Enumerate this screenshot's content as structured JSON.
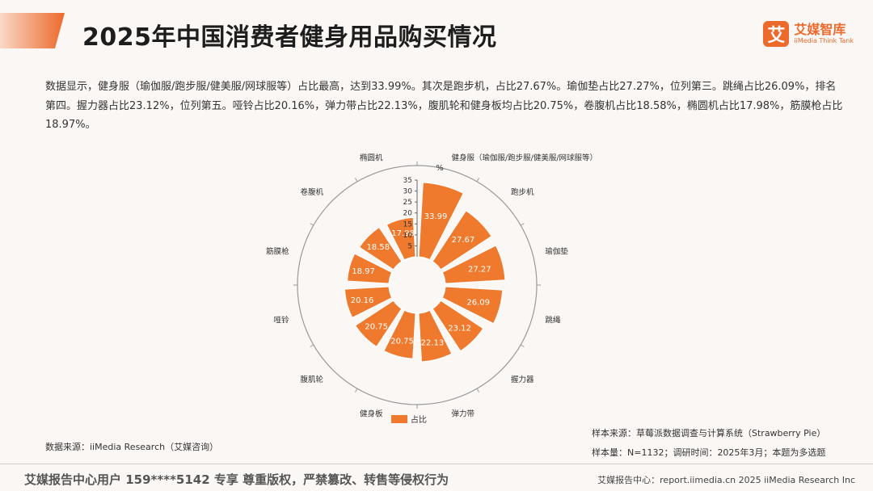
{
  "header": {
    "title": "2025年中国消费者健身用品购买情况",
    "accent_color": "#ec6a2c"
  },
  "logo": {
    "mark": "艾",
    "name_cn": "艾媒智库",
    "name_en": "iiMedia Think Tank"
  },
  "intro": "数据显示，健身服（瑜伽服/跑步服/健美服/网球服等）占比最高，达到33.99%。其次是跑步机，占比27.67%。瑜伽垫占比27.27%，位列第三。跳绳占比26.09%，排名第四。握力器占比23.12%，位列第五。哑铃占比20.16%，弹力带占比22.13%，腹肌轮和健身板均占比20.75%，卷腹机占比18.58%，椭圆机占比17.98%，筋膜枪占比18.97%。",
  "chart_data": {
    "type": "bar",
    "layout": "polar",
    "categories": [
      "健身服（瑜伽服/跑步服/健美服/网球服等）",
      "跑步机",
      "瑜伽垫",
      "跳绳",
      "握力器",
      "弹力带",
      "健身板",
      "腹肌轮",
      "哑铃",
      "筋膜枪",
      "卷腹机",
      "椭圆机"
    ],
    "series": [
      {
        "name": "占比",
        "values": [
          33.99,
          27.67,
          27.27,
          26.09,
          23.12,
          22.13,
          20.75,
          20.75,
          20.16,
          18.97,
          18.58,
          17.98
        ],
        "color": "#ef7a2e"
      }
    ],
    "ylim": [
      0,
      35
    ],
    "radial_ticks": [
      "0",
      "5",
      "10",
      "15",
      "20",
      "25",
      "30",
      "35"
    ],
    "radial_unit": "%",
    "legend": "bottom"
  },
  "source": {
    "left": "数据来源：iiMedia Research（艾媒咨询）",
    "sample_source": "样本来源：草莓派数据调查与计算系统（Strawberry Pie）",
    "sample_size": "样本量：N=1132；调研时间：2025年3月；本题为多选题"
  },
  "footer": {
    "left": "艾媒报告中心用户 159****5142 专享 尊重版权，严禁篡改、转售等侵权行为",
    "right": "艾媒报告中心：report.iimedia.cn  2025 iiMedia Research Inc"
  }
}
